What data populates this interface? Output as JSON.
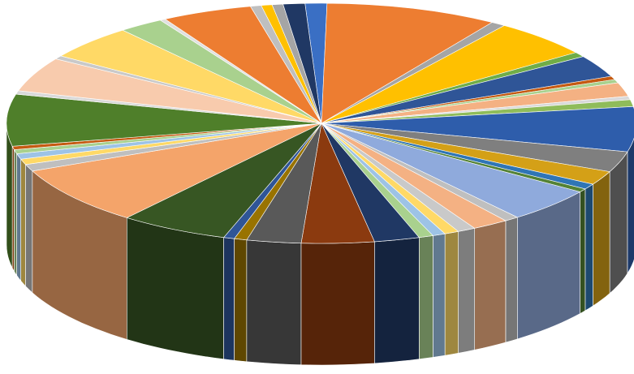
{
  "chart_data": {
    "type": "pie",
    "style": "3d",
    "title": "",
    "legend": "none",
    "data_labels": "none",
    "slices": [
      {
        "value": 1.2,
        "color": "#3a6fc4"
      },
      {
        "value": 9.5,
        "color": "#ed7d31"
      },
      {
        "value": 0.8,
        "color": "#a5a5a5"
      },
      {
        "value": 5.5,
        "color": "#ffc000"
      },
      {
        "value": 0.7,
        "color": "#70ad47"
      },
      {
        "value": 3.2,
        "color": "#2f5597"
      },
      {
        "value": 0.5,
        "color": "#c55a11"
      },
      {
        "value": 0.5,
        "color": "#a9d18e"
      },
      {
        "value": 2.0,
        "color": "#f4b183"
      },
      {
        "value": 0.5,
        "color": "#d9d9d9"
      },
      {
        "value": 1.0,
        "color": "#8fbc5a"
      },
      {
        "value": 6.5,
        "color": "#2e5dab"
      },
      {
        "value": 3.0,
        "color": "#7f7f7f"
      },
      {
        "value": 2.0,
        "color": "#d4a017"
      },
      {
        "value": 0.8,
        "color": "#2f75b5"
      },
      {
        "value": 0.5,
        "color": "#548235"
      },
      {
        "value": 5.0,
        "color": "#8faadc"
      },
      {
        "value": 0.8,
        "color": "#bfbfbf"
      },
      {
        "value": 2.0,
        "color": "#f4b183"
      },
      {
        "value": 1.0,
        "color": "#c9c9c9"
      },
      {
        "value": 0.8,
        "color": "#ffd966"
      },
      {
        "value": 0.7,
        "color": "#9dc3e6"
      },
      {
        "value": 0.8,
        "color": "#a9d18e"
      },
      {
        "value": 2.5,
        "color": "#203864"
      },
      {
        "value": 4.0,
        "color": "#8b3a0f"
      },
      {
        "value": 3.0,
        "color": "#595959"
      },
      {
        "value": 0.7,
        "color": "#997300"
      },
      {
        "value": 0.6,
        "color": "#2f5597"
      },
      {
        "value": 6.0,
        "color": "#375623"
      },
      {
        "value": 8.5,
        "color": "#f4a46a"
      },
      {
        "value": 1.0,
        "color": "#bfbfbf"
      },
      {
        "value": 0.8,
        "color": "#ffd966"
      },
      {
        "value": 0.8,
        "color": "#9dc3e6"
      },
      {
        "value": 0.6,
        "color": "#a9d18e"
      },
      {
        "value": 0.5,
        "color": "#c55a11"
      },
      {
        "value": 7.5,
        "color": "#4f7f2a"
      },
      {
        "value": 0.5,
        "color": "#d9d9d9"
      },
      {
        "value": 5.0,
        "color": "#f8cbad"
      },
      {
        "value": 0.5,
        "color": "#c9c9c9"
      },
      {
        "value": 5.0,
        "color": "#ffd966"
      },
      {
        "value": 2.5,
        "color": "#a9d18e"
      },
      {
        "value": 0.3,
        "color": "#e0e0e0"
      },
      {
        "value": 5.0,
        "color": "#ed7d31"
      },
      {
        "value": 0.6,
        "color": "#bfbfbf"
      },
      {
        "value": 0.6,
        "color": "#ffc000"
      },
      {
        "value": 0.6,
        "color": "#a5a5a5"
      },
      {
        "value": 1.2,
        "color": "#203864"
      }
    ]
  }
}
